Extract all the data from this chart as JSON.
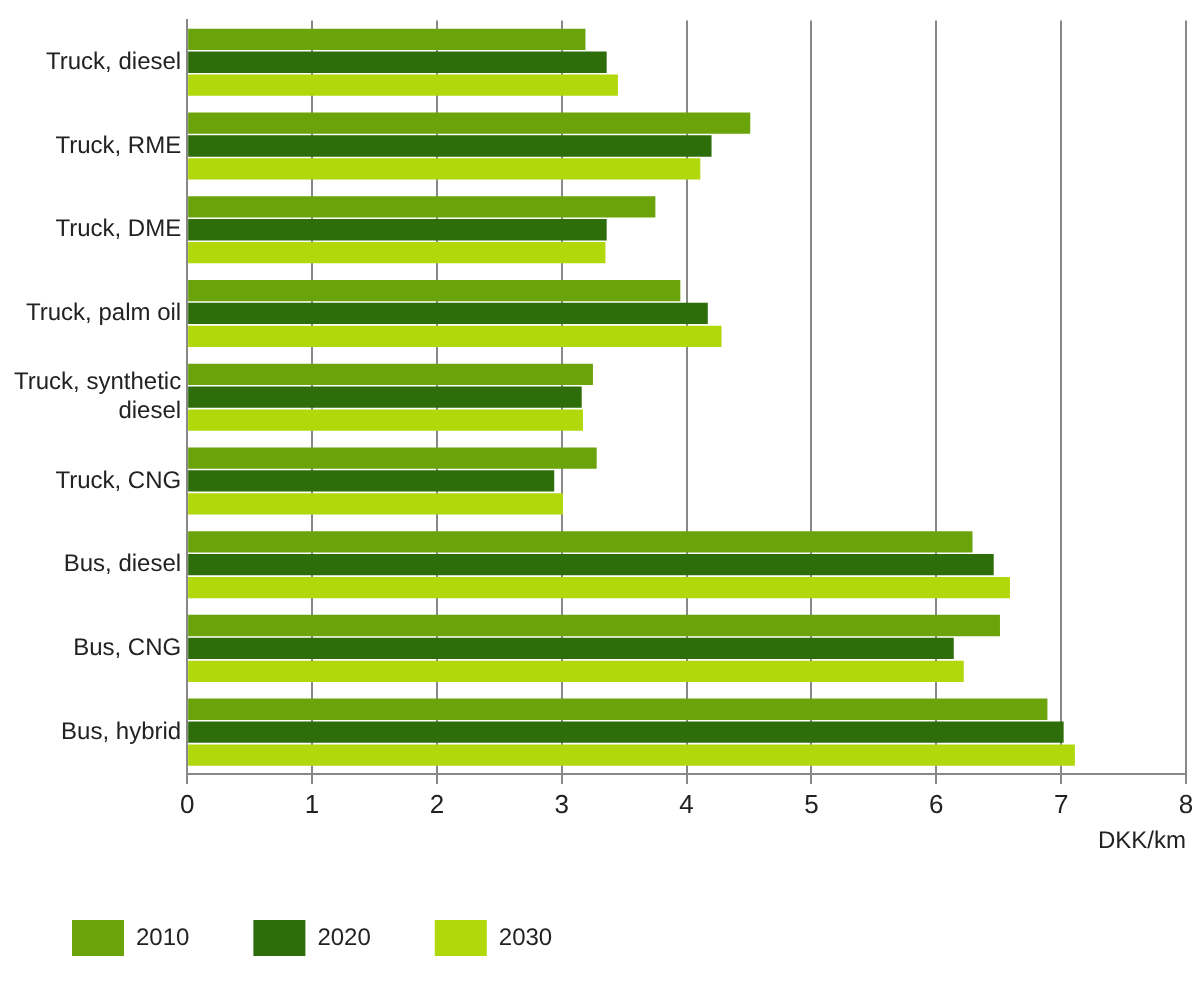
{
  "chart_data": {
    "type": "bar",
    "orientation": "horizontal",
    "xlabel": "DKK/km",
    "categories": [
      "Truck, diesel",
      "Truck, RME",
      "Truck, DME",
      "Truck, palm oil",
      "Truck, synthetic diesel",
      "Truck, CNG",
      "Bus, diesel",
      "Bus, CNG",
      "Bus, hybrid"
    ],
    "series": [
      {
        "name": "2010",
        "color": "#6aa30a",
        "values": [
          3.19,
          4.51,
          3.75,
          3.95,
          3.25,
          3.28,
          6.29,
          6.51,
          6.89
        ]
      },
      {
        "name": "2020",
        "color": "#2e6e0a",
        "values": [
          3.36,
          4.2,
          3.36,
          4.17,
          3.16,
          2.94,
          6.46,
          6.14,
          7.02
        ]
      },
      {
        "name": "2030",
        "color": "#b0d80a",
        "values": [
          3.45,
          4.11,
          3.35,
          4.28,
          3.17,
          3.01,
          6.59,
          6.22,
          7.11
        ]
      }
    ],
    "xlim": [
      0,
      8
    ],
    "xticks": [
      0,
      1,
      2,
      3,
      4,
      5,
      6,
      7,
      8
    ],
    "grid": "x",
    "legend": "bottom"
  }
}
